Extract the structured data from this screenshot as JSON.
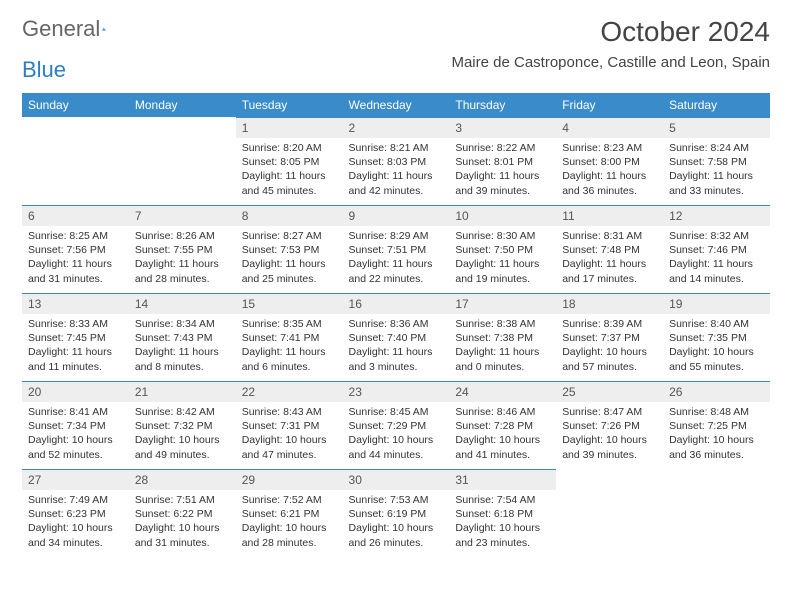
{
  "logo": {
    "textA": "General",
    "textB": "Blue"
  },
  "header": {
    "month_title": "October 2024",
    "location": "Maire de Castroponce, Castille and Leon, Spain"
  },
  "colors": {
    "header_bg": "#3a8bc9",
    "header_text": "#ffffff",
    "daynum_bg": "#eeeeee",
    "border": "#3a8bc9"
  },
  "weekdays": [
    "Sunday",
    "Monday",
    "Tuesday",
    "Wednesday",
    "Thursday",
    "Friday",
    "Saturday"
  ],
  "weeks": [
    [
      {
        "n": "",
        "sunrise": "",
        "sunset": "",
        "daylight": "",
        "empty": true
      },
      {
        "n": "",
        "sunrise": "",
        "sunset": "",
        "daylight": "",
        "empty": true
      },
      {
        "n": "1",
        "sunrise": "Sunrise: 8:20 AM",
        "sunset": "Sunset: 8:05 PM",
        "daylight": "Daylight: 11 hours and 45 minutes."
      },
      {
        "n": "2",
        "sunrise": "Sunrise: 8:21 AM",
        "sunset": "Sunset: 8:03 PM",
        "daylight": "Daylight: 11 hours and 42 minutes."
      },
      {
        "n": "3",
        "sunrise": "Sunrise: 8:22 AM",
        "sunset": "Sunset: 8:01 PM",
        "daylight": "Daylight: 11 hours and 39 minutes."
      },
      {
        "n": "4",
        "sunrise": "Sunrise: 8:23 AM",
        "sunset": "Sunset: 8:00 PM",
        "daylight": "Daylight: 11 hours and 36 minutes."
      },
      {
        "n": "5",
        "sunrise": "Sunrise: 8:24 AM",
        "sunset": "Sunset: 7:58 PM",
        "daylight": "Daylight: 11 hours and 33 minutes."
      }
    ],
    [
      {
        "n": "6",
        "sunrise": "Sunrise: 8:25 AM",
        "sunset": "Sunset: 7:56 PM",
        "daylight": "Daylight: 11 hours and 31 minutes."
      },
      {
        "n": "7",
        "sunrise": "Sunrise: 8:26 AM",
        "sunset": "Sunset: 7:55 PM",
        "daylight": "Daylight: 11 hours and 28 minutes."
      },
      {
        "n": "8",
        "sunrise": "Sunrise: 8:27 AM",
        "sunset": "Sunset: 7:53 PM",
        "daylight": "Daylight: 11 hours and 25 minutes."
      },
      {
        "n": "9",
        "sunrise": "Sunrise: 8:29 AM",
        "sunset": "Sunset: 7:51 PM",
        "daylight": "Daylight: 11 hours and 22 minutes."
      },
      {
        "n": "10",
        "sunrise": "Sunrise: 8:30 AM",
        "sunset": "Sunset: 7:50 PM",
        "daylight": "Daylight: 11 hours and 19 minutes."
      },
      {
        "n": "11",
        "sunrise": "Sunrise: 8:31 AM",
        "sunset": "Sunset: 7:48 PM",
        "daylight": "Daylight: 11 hours and 17 minutes."
      },
      {
        "n": "12",
        "sunrise": "Sunrise: 8:32 AM",
        "sunset": "Sunset: 7:46 PM",
        "daylight": "Daylight: 11 hours and 14 minutes."
      }
    ],
    [
      {
        "n": "13",
        "sunrise": "Sunrise: 8:33 AM",
        "sunset": "Sunset: 7:45 PM",
        "daylight": "Daylight: 11 hours and 11 minutes."
      },
      {
        "n": "14",
        "sunrise": "Sunrise: 8:34 AM",
        "sunset": "Sunset: 7:43 PM",
        "daylight": "Daylight: 11 hours and 8 minutes."
      },
      {
        "n": "15",
        "sunrise": "Sunrise: 8:35 AM",
        "sunset": "Sunset: 7:41 PM",
        "daylight": "Daylight: 11 hours and 6 minutes."
      },
      {
        "n": "16",
        "sunrise": "Sunrise: 8:36 AM",
        "sunset": "Sunset: 7:40 PM",
        "daylight": "Daylight: 11 hours and 3 minutes."
      },
      {
        "n": "17",
        "sunrise": "Sunrise: 8:38 AM",
        "sunset": "Sunset: 7:38 PM",
        "daylight": "Daylight: 11 hours and 0 minutes."
      },
      {
        "n": "18",
        "sunrise": "Sunrise: 8:39 AM",
        "sunset": "Sunset: 7:37 PM",
        "daylight": "Daylight: 10 hours and 57 minutes."
      },
      {
        "n": "19",
        "sunrise": "Sunrise: 8:40 AM",
        "sunset": "Sunset: 7:35 PM",
        "daylight": "Daylight: 10 hours and 55 minutes."
      }
    ],
    [
      {
        "n": "20",
        "sunrise": "Sunrise: 8:41 AM",
        "sunset": "Sunset: 7:34 PM",
        "daylight": "Daylight: 10 hours and 52 minutes."
      },
      {
        "n": "21",
        "sunrise": "Sunrise: 8:42 AM",
        "sunset": "Sunset: 7:32 PM",
        "daylight": "Daylight: 10 hours and 49 minutes."
      },
      {
        "n": "22",
        "sunrise": "Sunrise: 8:43 AM",
        "sunset": "Sunset: 7:31 PM",
        "daylight": "Daylight: 10 hours and 47 minutes."
      },
      {
        "n": "23",
        "sunrise": "Sunrise: 8:45 AM",
        "sunset": "Sunset: 7:29 PM",
        "daylight": "Daylight: 10 hours and 44 minutes."
      },
      {
        "n": "24",
        "sunrise": "Sunrise: 8:46 AM",
        "sunset": "Sunset: 7:28 PM",
        "daylight": "Daylight: 10 hours and 41 minutes."
      },
      {
        "n": "25",
        "sunrise": "Sunrise: 8:47 AM",
        "sunset": "Sunset: 7:26 PM",
        "daylight": "Daylight: 10 hours and 39 minutes."
      },
      {
        "n": "26",
        "sunrise": "Sunrise: 8:48 AM",
        "sunset": "Sunset: 7:25 PM",
        "daylight": "Daylight: 10 hours and 36 minutes."
      }
    ],
    [
      {
        "n": "27",
        "sunrise": "Sunrise: 7:49 AM",
        "sunset": "Sunset: 6:23 PM",
        "daylight": "Daylight: 10 hours and 34 minutes."
      },
      {
        "n": "28",
        "sunrise": "Sunrise: 7:51 AM",
        "sunset": "Sunset: 6:22 PM",
        "daylight": "Daylight: 10 hours and 31 minutes."
      },
      {
        "n": "29",
        "sunrise": "Sunrise: 7:52 AM",
        "sunset": "Sunset: 6:21 PM",
        "daylight": "Daylight: 10 hours and 28 minutes."
      },
      {
        "n": "30",
        "sunrise": "Sunrise: 7:53 AM",
        "sunset": "Sunset: 6:19 PM",
        "daylight": "Daylight: 10 hours and 26 minutes."
      },
      {
        "n": "31",
        "sunrise": "Sunrise: 7:54 AM",
        "sunset": "Sunset: 6:18 PM",
        "daylight": "Daylight: 10 hours and 23 minutes."
      },
      {
        "n": "",
        "sunrise": "",
        "sunset": "",
        "daylight": "",
        "empty": true
      },
      {
        "n": "",
        "sunrise": "",
        "sunset": "",
        "daylight": "",
        "empty": true
      }
    ]
  ]
}
